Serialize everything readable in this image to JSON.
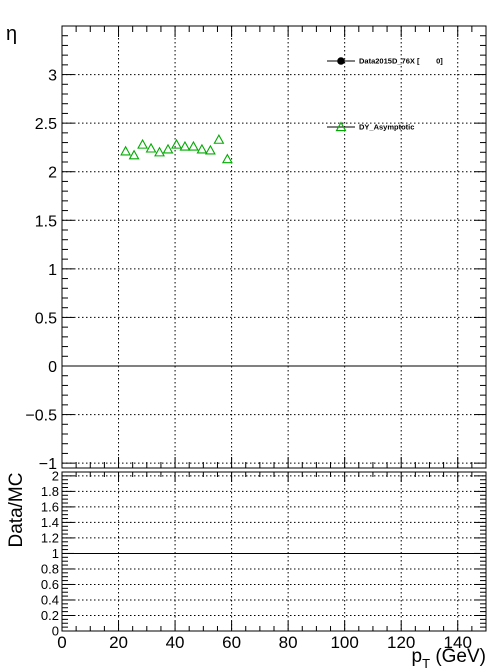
{
  "chart_data": [
    {
      "type": "scatter",
      "panel": "main",
      "title": "",
      "xlabel": "",
      "ylabel": "η",
      "xlim": [
        0,
        150
      ],
      "ylim": [
        -1.05,
        3.5
      ],
      "yticks": [
        "−1",
        "−0.5",
        "0",
        "0.5",
        "1",
        "1.5",
        "2",
        "2.5",
        "3"
      ],
      "grid": true,
      "legend_placement": "top-right",
      "series": [
        {
          "name": "Data2015D_76X [        0]",
          "marker": "filled-circle",
          "color": "#000000",
          "x": [],
          "y": []
        },
        {
          "name": "DY_Asymptotic",
          "marker": "open-triangle",
          "color": "#00aa00",
          "x": [
            22.5,
            25.5,
            28.5,
            31.5,
            34.5,
            37.5,
            40.5,
            43.5,
            46.5,
            49.5,
            52.5,
            55.5,
            58.5
          ],
          "y": [
            2.21,
            2.17,
            2.28,
            2.24,
            2.2,
            2.23,
            2.28,
            2.26,
            2.26,
            2.23,
            2.22,
            2.33,
            2.13
          ]
        }
      ]
    },
    {
      "type": "line",
      "panel": "ratio",
      "title": "",
      "xlabel": "p_T (GeV)",
      "ylabel": "Data/MC",
      "xlim": [
        0,
        150
      ],
      "ylim": [
        0,
        2.05
      ],
      "xticks": [
        "0",
        "20",
        "40",
        "60",
        "80",
        "100",
        "120",
        "140"
      ],
      "yticks": [
        "0",
        "0.2",
        "0.4",
        "0.6",
        "0.8",
        "1",
        "1.2",
        "1.4",
        "1.6",
        "1.8",
        "2"
      ],
      "grid": true,
      "reference_line": 1,
      "series": []
    }
  ]
}
